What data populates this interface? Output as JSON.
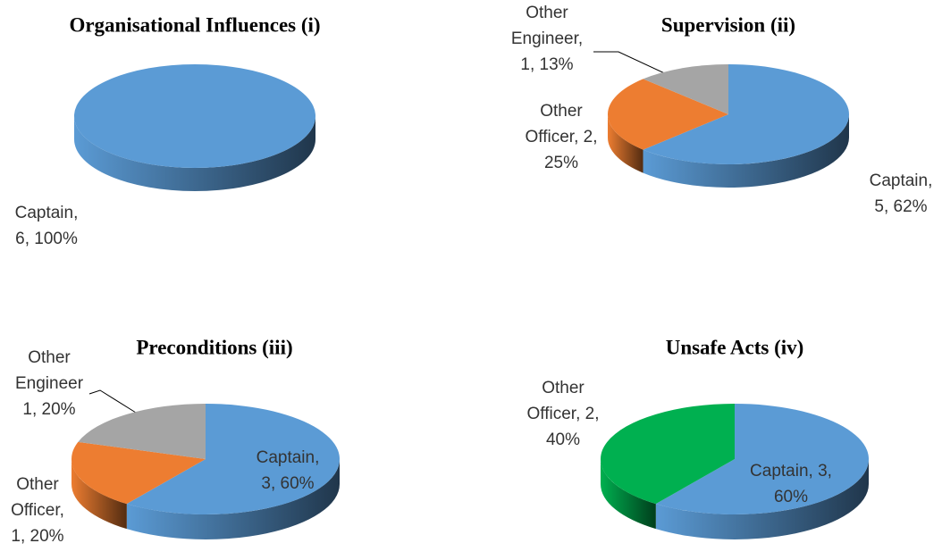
{
  "chart_data": [
    {
      "type": "pie3d",
      "title": "Organisational Influences (i)",
      "categories": [
        "Captain"
      ],
      "values": [
        6
      ],
      "value_labels": [
        "Captain,\n6, 100%"
      ],
      "colors": [
        "#5b9bd5"
      ]
    },
    {
      "type": "pie3d",
      "title": "Supervision (ii)",
      "categories": [
        "Captain",
        "Other Officer",
        "Other Engineer"
      ],
      "values": [
        5,
        2,
        1
      ],
      "value_labels": [
        "Captain,\n5, 62%",
        "Other\nOfficer, 2,\n25%",
        "Other\nEngineer,\n1, 13%"
      ],
      "colors": [
        "#5b9bd5",
        "#ed7d31",
        "#a5a5a5"
      ]
    },
    {
      "type": "pie3d",
      "title": "Preconditions (iii)",
      "categories": [
        "Captain",
        "Other Officer",
        "Other Engineer"
      ],
      "values": [
        3,
        1,
        1
      ],
      "value_labels": [
        "Captain,\n3, 60%",
        "Other\nOfficer,\n1, 20%",
        "Other\nEngineer\n1, 20%"
      ],
      "colors": [
        "#5b9bd5",
        "#ed7d31",
        "#a5a5a5"
      ]
    },
    {
      "type": "pie3d",
      "title": "Unsafe Acts (iv)",
      "categories": [
        "Captain",
        "Other Officer"
      ],
      "values": [
        3,
        2
      ],
      "value_labels": [
        "Captain, 3,\n60%",
        "Other\nOfficer, 2,\n40%"
      ],
      "colors": [
        "#5b9bd5",
        "#00b050"
      ]
    }
  ]
}
